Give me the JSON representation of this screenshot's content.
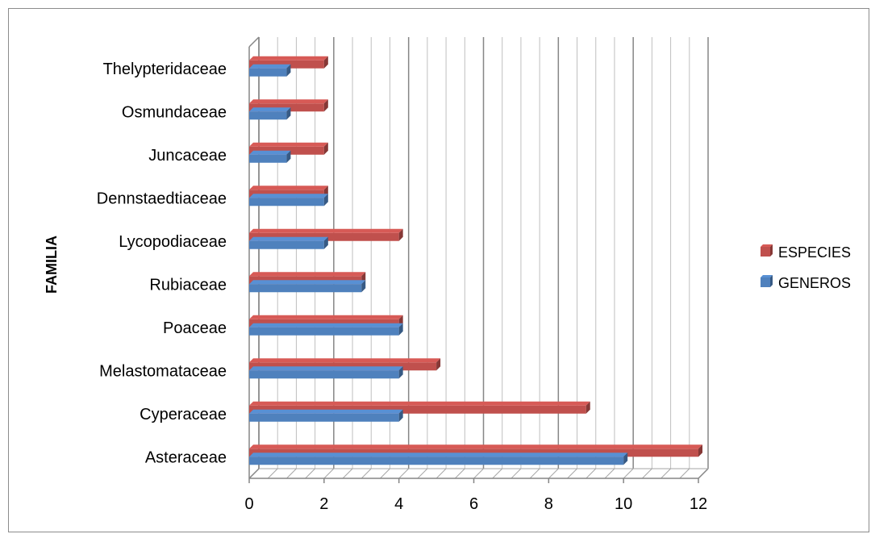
{
  "chart_data": {
    "type": "bar",
    "orientation": "horizontal",
    "categories": [
      "Asteraceae",
      "Cyperaceae",
      "Melastomataceae",
      "Poaceae",
      "Rubiaceae",
      "Lycopodiaceae",
      "Dennstaedtiaceae",
      "Juncaceae",
      "Osmundaceae",
      "Thelypteridaceae"
    ],
    "series": [
      {
        "name": "ESPECIES",
        "color": "#C0504D",
        "values": [
          12,
          9,
          5,
          4,
          3,
          4,
          2,
          2,
          2,
          2
        ]
      },
      {
        "name": "GENEROS",
        "color": "#4F81BD",
        "values": [
          10,
          4,
          4,
          4,
          3,
          2,
          2,
          1,
          1,
          1
        ]
      }
    ],
    "title": "",
    "xlabel": "",
    "ylabel": "FAMILIA",
    "xlim": [
      0,
      12
    ],
    "xticks": [
      0,
      2,
      4,
      6,
      8,
      10,
      12
    ],
    "grid": true,
    "legend_position": "right",
    "style": "3d"
  }
}
